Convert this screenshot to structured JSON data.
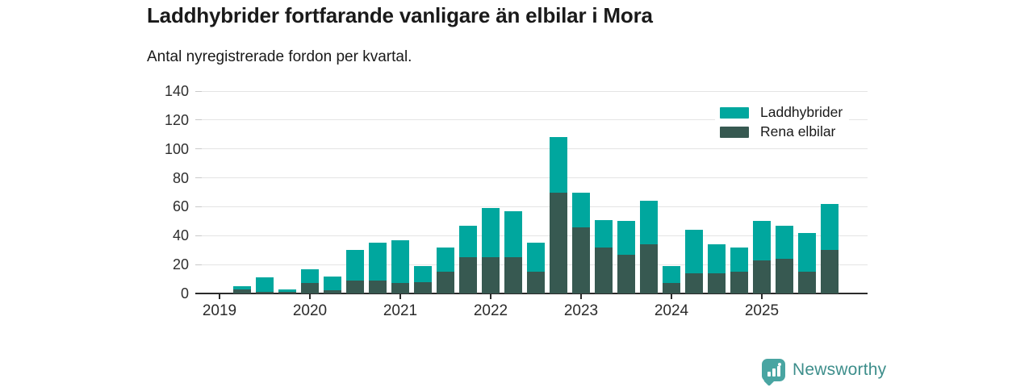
{
  "header": {
    "title": "Laddhybrider fortfarande vanligare än elbilar i Mora",
    "subtitle": "Antal nyregistrerade fordon per kvartal."
  },
  "legend": [
    {
      "label": "Laddhybrider",
      "color": "#00a79e"
    },
    {
      "label": "Rena elbilar",
      "color": "#375951"
    }
  ],
  "footer": {
    "brand": "Newsworthy",
    "brand_color": "#3d8e8b",
    "logo_color": "#49a5a2"
  },
  "chart_data": {
    "type": "bar",
    "stacked": true,
    "title": "Laddhybrider fortfarande vanligare än elbilar i Mora",
    "subtitle": "Antal nyregistrerade fordon per kvartal.",
    "x": [
      "2019 Q1",
      "2019 Q2",
      "2019 Q3",
      "2019 Q4",
      "2020 Q1",
      "2020 Q2",
      "2020 Q3",
      "2020 Q4",
      "2021 Q1",
      "2021 Q2",
      "2021 Q3",
      "2021 Q4",
      "2022 Q1",
      "2022 Q2",
      "2022 Q3",
      "2022 Q4",
      "2023 Q1",
      "2023 Q2",
      "2023 Q3",
      "2023 Q4",
      "2024 Q1",
      "2024 Q2",
      "2024 Q3",
      "2024 Q4",
      "2025 Q1",
      "2025 Q2",
      "2025 Q3",
      "2025 Q4"
    ],
    "series": [
      {
        "name": "Rena elbilar",
        "color": "#375951",
        "stack_order": "bottom",
        "values": [
          0,
          3,
          1,
          1,
          7,
          2,
          9,
          9,
          7,
          8,
          15,
          25,
          25,
          25,
          15,
          70,
          46,
          32,
          27,
          34,
          7,
          14,
          14,
          15,
          23,
          24,
          15,
          30
        ]
      },
      {
        "name": "Laddhybrider",
        "color": "#00a79e",
        "stack_order": "top",
        "values": [
          0,
          2,
          10,
          2,
          10,
          10,
          21,
          26,
          30,
          11,
          17,
          22,
          34,
          32,
          20,
          38,
          24,
          19,
          23,
          30,
          12,
          30,
          20,
          17,
          27,
          23,
          27,
          32
        ]
      }
    ],
    "totals": [
      0,
      5,
      11,
      3,
      17,
      12,
      30,
      35,
      37,
      19,
      32,
      47,
      59,
      57,
      35,
      108,
      70,
      51,
      50,
      64,
      19,
      44,
      34,
      32,
      50,
      47,
      42,
      62
    ],
    "xticklabels": [
      "2019",
      "2020",
      "2021",
      "2022",
      "2023",
      "2024",
      "2025"
    ],
    "ylabel": "",
    "xlabel": "",
    "ylim": [
      0,
      140
    ],
    "yticks": [
      0,
      20,
      40,
      60,
      80,
      100,
      120,
      140
    ],
    "grid": true,
    "gridcolor": "#e4e4e4",
    "legend_position": "top-right"
  }
}
